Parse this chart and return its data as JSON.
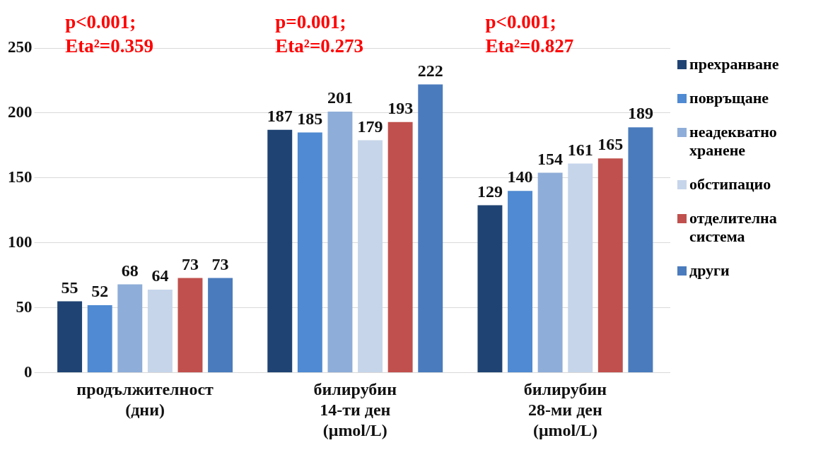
{
  "chart_data": {
    "type": "bar",
    "categories": [
      "продължителност\n(дни)",
      "билирубин\n14-ти ден\n(μmol/L)",
      "билирубин\n28-ми ден\n(μmol/L)"
    ],
    "series": [
      {
        "name": "прехранване",
        "color": "#1f4373",
        "values": [
          55,
          187,
          129
        ]
      },
      {
        "name": "повръщане",
        "color": "#4f8ad2",
        "values": [
          52,
          185,
          140
        ]
      },
      {
        "name": "неадекватно хранене",
        "color": "#8eadd8",
        "values": [
          68,
          201,
          154
        ]
      },
      {
        "name": "обстипацио",
        "color": "#c6d5ea",
        "values": [
          64,
          179,
          161
        ]
      },
      {
        "name": "отделителна система",
        "color": "#c0504d",
        "values": [
          73,
          193,
          165
        ]
      },
      {
        "name": "други",
        "color": "#4a7bbd",
        "values": [
          73,
          222,
          189
        ]
      }
    ],
    "ylim": [
      0,
      250
    ],
    "yticks": [
      0,
      50,
      100,
      150,
      200,
      250
    ],
    "grid": "y",
    "legend": "right",
    "data_labels": true,
    "annotations": [
      "p<0.001;\nEta²=0.359",
      "p=0.001;\nEta²=0.273",
      "p<0.001;\nEta²=0.827"
    ]
  }
}
